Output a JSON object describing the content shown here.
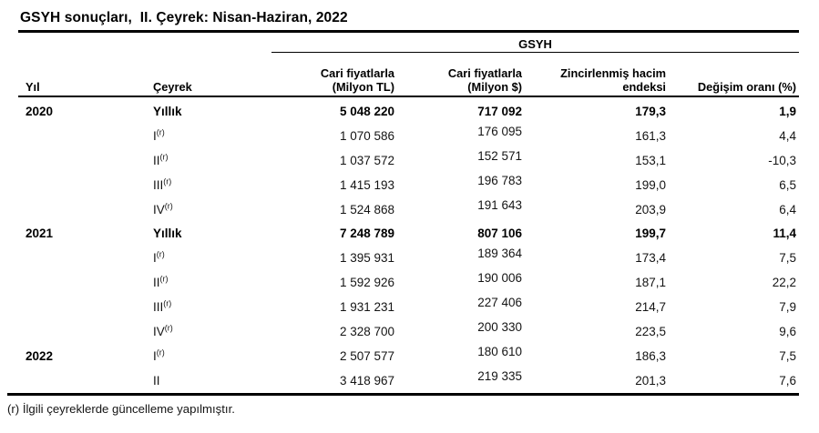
{
  "title": "GSYH sonuçları,  II. Çeyrek: Nisan-Haziran, 2022",
  "colors": {
    "line": "#000000",
    "text": "#000000"
  },
  "table": {
    "group_header": "GSYH",
    "headers": {
      "year": "Yıl",
      "quarter": "Çeyrek",
      "tl_line1": "Cari fiyatlarla",
      "tl_line2": "(Milyon TL)",
      "usd_line1": "Cari fiyatlarla",
      "usd_line2": "(Milyon $)",
      "index_line1": "Zincirlenmiş hacim",
      "index_line2": "endeksi",
      "change": "Değişim oranı (%)"
    },
    "rows": [
      {
        "year": "2020",
        "quarter": "Yıllık",
        "sup": "",
        "tl": "5 048 220",
        "usd": "717 092",
        "index": "179,3",
        "change": "1,9"
      },
      {
        "year": "",
        "quarter": "I",
        "sup": "(r)",
        "tl": "1 070 586",
        "usd": "176 095",
        "index": "161,3",
        "change": "4,4"
      },
      {
        "year": "",
        "quarter": "II",
        "sup": "(r)",
        "tl": "1 037 572",
        "usd": "152 571",
        "index": "153,1",
        "change": "-10,3"
      },
      {
        "year": "",
        "quarter": "III",
        "sup": "(r)",
        "tl": "1 415 193",
        "usd": "196 783",
        "index": "199,0",
        "change": "6,5"
      },
      {
        "year": "",
        "quarter": "IV",
        "sup": "(r)",
        "tl": "1 524 868",
        "usd": "191 643",
        "index": "203,9",
        "change": "6,4"
      },
      {
        "year": "2021",
        "quarter": "Yıllık",
        "sup": "",
        "tl": "7 248 789",
        "usd": "807 106",
        "index": "199,7",
        "change": "11,4"
      },
      {
        "year": "",
        "quarter": "I",
        "sup": "(r)",
        "tl": "1 395 931",
        "usd": "189 364",
        "index": "173,4",
        "change": "7,5"
      },
      {
        "year": "",
        "quarter": "II",
        "sup": "(r)",
        "tl": "1 592 926",
        "usd": "190 006",
        "index": "187,1",
        "change": "22,2"
      },
      {
        "year": "",
        "quarter": "III",
        "sup": "(r)",
        "tl": "1 931 231",
        "usd": "227 406",
        "index": "214,7",
        "change": "7,9"
      },
      {
        "year": "",
        "quarter": "IV",
        "sup": "(r)",
        "tl": "2 328 700",
        "usd": "200 330",
        "index": "223,5",
        "change": "9,6"
      },
      {
        "year": "2022",
        "quarter": "I",
        "sup": "(r)",
        "tl": "2 507 577",
        "usd": "180 610",
        "index": "186,3",
        "change": "7,5"
      },
      {
        "year": "",
        "quarter": "II",
        "sup": "",
        "tl": "3 418 967",
        "usd": "219 335",
        "index": "201,3",
        "change": "7,6"
      }
    ]
  },
  "footnote": "(r) İlgili çeyreklerde güncelleme yapılmıştır."
}
